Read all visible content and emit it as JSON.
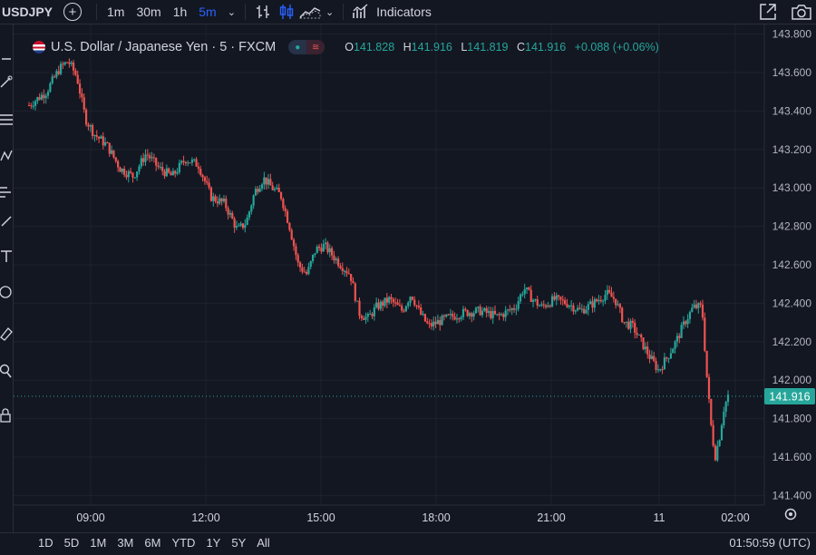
{
  "toolbar": {
    "symbol": "USDJPY",
    "add_icon": "plus-circle-icon",
    "timeframes": [
      "1m",
      "30m",
      "1h",
      "5m"
    ],
    "active_timeframe": "5m",
    "indicators_label": "Indicators",
    "icons": [
      "bar-style-icon",
      "candle-style-icon",
      "area-style-icon",
      "chevron-down-icon",
      "indicators-icon",
      "fullscreen-icon",
      "camera-icon"
    ]
  },
  "legend": {
    "title": "U.S. Dollar / Japanese Yen · 5 · FXCM",
    "open_label": "O",
    "open": "141.828",
    "high_label": "H",
    "high": "141.916",
    "low_label": "L",
    "low": "141.819",
    "close_label": "C",
    "close": "141.916",
    "change": "+0.088 (+0.06%)",
    "pill_left": "●",
    "pill_right": "≋"
  },
  "colors": {
    "up": "#26a69a",
    "down": "#ef5350",
    "background": "#131722",
    "grid": "#1e222d",
    "last_price_tag": "#26a69a",
    "active_tf": "#2962ff"
  },
  "chart_data": {
    "type": "candlestick",
    "ylim": [
      141.35,
      143.85
    ],
    "yticks": [
      "143.800",
      "143.600",
      "143.400",
      "143.200",
      "143.000",
      "142.800",
      "142.600",
      "142.400",
      "142.200",
      "142.000",
      "141.800",
      "141.600",
      "141.400"
    ],
    "xticks": [
      "09:00",
      "12:00",
      "15:00",
      "18:00",
      "21:00",
      "11",
      "02:00"
    ],
    "last_price": "141.916",
    "close_path": [
      [
        0,
        143.43
      ],
      [
        4,
        143.5
      ],
      [
        7,
        143.62
      ],
      [
        9,
        143.66
      ],
      [
        11,
        143.58
      ],
      [
        13,
        143.36
      ],
      [
        15,
        143.28
      ],
      [
        18,
        143.22
      ],
      [
        21,
        143.1
      ],
      [
        24,
        143.06
      ],
      [
        27,
        143.18
      ],
      [
        30,
        143.1
      ],
      [
        33,
        143.06
      ],
      [
        36,
        143.15
      ],
      [
        39,
        143.12
      ],
      [
        42,
        142.95
      ],
      [
        45,
        142.92
      ],
      [
        48,
        142.78
      ],
      [
        50,
        142.82
      ],
      [
        52,
        142.98
      ],
      [
        54,
        143.05
      ],
      [
        56,
        143.0
      ],
      [
        58,
        142.96
      ],
      [
        60,
        142.8
      ],
      [
        62,
        142.6
      ],
      [
        64,
        142.55
      ],
      [
        66,
        142.68
      ],
      [
        68,
        142.7
      ],
      [
        71,
        142.62
      ],
      [
        74,
        142.55
      ],
      [
        76,
        142.35
      ],
      [
        78,
        142.32
      ],
      [
        80,
        142.38
      ],
      [
        83,
        142.42
      ],
      [
        86,
        142.36
      ],
      [
        88,
        142.45
      ],
      [
        90,
        142.35
      ],
      [
        92,
        142.28
      ],
      [
        96,
        142.32
      ],
      [
        100,
        142.35
      ],
      [
        104,
        142.36
      ],
      [
        108,
        142.33
      ],
      [
        112,
        142.38
      ],
      [
        114,
        142.48
      ],
      [
        116,
        142.42
      ],
      [
        118,
        142.38
      ],
      [
        121,
        142.42
      ],
      [
        124,
        142.4
      ],
      [
        127,
        142.36
      ],
      [
        130,
        142.4
      ],
      [
        133,
        142.45
      ],
      [
        135,
        142.42
      ],
      [
        137,
        142.3
      ],
      [
        139,
        142.28
      ],
      [
        141,
        142.2
      ],
      [
        143,
        142.12
      ],
      [
        145,
        142.05
      ],
      [
        147,
        142.12
      ],
      [
        149,
        142.2
      ],
      [
        151,
        142.3
      ],
      [
        153,
        142.38
      ],
      [
        155,
        142.38
      ],
      [
        156,
        142.05
      ],
      [
        157,
        141.78
      ],
      [
        158,
        141.6
      ],
      [
        159,
        141.7
      ],
      [
        160,
        141.85
      ],
      [
        161,
        141.92
      ]
    ]
  },
  "bottom": {
    "ranges": [
      "1D",
      "5D",
      "1M",
      "3M",
      "6M",
      "YTD",
      "1Y",
      "5Y",
      "All"
    ],
    "time": "01:50:59 (UTC)"
  }
}
